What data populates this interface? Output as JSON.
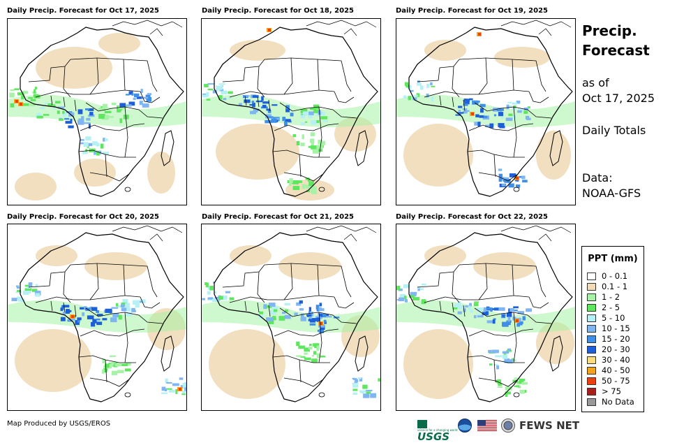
{
  "panels": [
    {
      "title": "Daily Precip. Forecast for Oct 17, 2025"
    },
    {
      "title": "Daily Precip. Forecast for Oct 18, 2025"
    },
    {
      "title": "Daily Precip. Forecast for Oct 19, 2025"
    },
    {
      "title": "Daily Precip. Forecast for Oct 20, 2025"
    },
    {
      "title": "Daily Precip. Forecast for Oct 21, 2025"
    },
    {
      "title": "Daily Precip. Forecast for Oct 22, 2025"
    }
  ],
  "sidebar": {
    "title_line1": "Precip.",
    "title_line2": "Forecast",
    "as_of_label": "as of",
    "as_of_date": "Oct 17, 2025",
    "totals_label": "Daily Totals",
    "data_label": "Data:",
    "data_source": "NOAA-GFS"
  },
  "legend": {
    "title": "PPT (mm)",
    "items": [
      {
        "label": "0 - 0.1",
        "color": "#ffffff"
      },
      {
        "label": "0.1 - 1",
        "color": "#f1dcb8"
      },
      {
        "label": "1 - 2",
        "color": "#a6f2a6"
      },
      {
        "label": "2 - 5",
        "color": "#5ee65e"
      },
      {
        "label": "5 - 10",
        "color": "#b4f0f4"
      },
      {
        "label": "10 - 15",
        "color": "#7fb6f2"
      },
      {
        "label": "15 - 20",
        "color": "#3f8fe8"
      },
      {
        "label": "20 - 30",
        "color": "#1c5fd8"
      },
      {
        "label": "30 - 40",
        "color": "#f8dc80"
      },
      {
        "label": "40 - 50",
        "color": "#f4a41c"
      },
      {
        "label": "50 - 75",
        "color": "#ec4010"
      },
      {
        "label": "> 75",
        "color": "#a8201c"
      },
      {
        "label": "No Data",
        "color": "#999999"
      }
    ]
  },
  "footer": {
    "credit": "Map Produced by USGS/EROS",
    "usgs": "USGS",
    "usgs_tagline": "science for a changing world",
    "fews": "FEWS NET"
  }
}
